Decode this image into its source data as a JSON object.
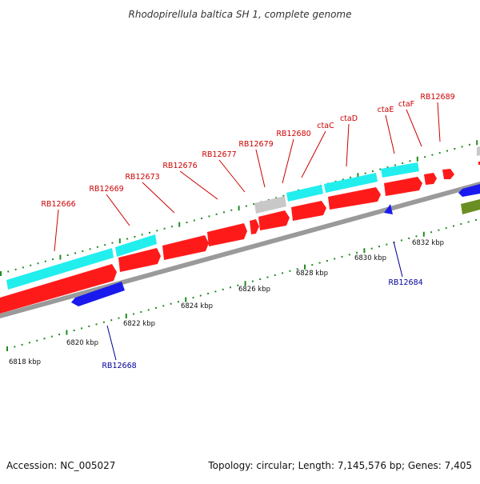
{
  "title": "Rhodopirellula baltica SH 1, complete genome",
  "footer": {
    "accession": "Accession: NC_005027",
    "summary": "Topology: circular; Length: 7,145,576 bp; Genes: 7,405"
  },
  "colors": {
    "cds_forward": "#ff1a1a",
    "cds_reverse": "#1a1aee",
    "highlight": "#22eeee",
    "grey_feature": "#c8c8c8",
    "olive_feature": "#6b8e23",
    "backbone": "#9a9a9a",
    "tick": "#228b22",
    "label_red": "#cc0000",
    "label_blue": "#000099"
  },
  "labels_upper": [
    {
      "text": "RB12666",
      "name": "label-rb12666"
    },
    {
      "text": "RB12669",
      "name": "label-rb12669"
    },
    {
      "text": "RB12673",
      "name": "label-rb12673"
    },
    {
      "text": "RB12676",
      "name": "label-rb12676"
    },
    {
      "text": "RB12677",
      "name": "label-rb12677"
    },
    {
      "text": "RB12679",
      "name": "label-rb12679"
    },
    {
      "text": "RB12680",
      "name": "label-rb12680"
    },
    {
      "text": "ctaC",
      "name": "label-ctac"
    },
    {
      "text": "ctaD",
      "name": "label-ctad"
    },
    {
      "text": "ctaE",
      "name": "label-ctae"
    },
    {
      "text": "ctaF",
      "name": "label-ctaf"
    },
    {
      "text": "RB12689",
      "name": "label-rb12689"
    }
  ],
  "labels_lower": [
    {
      "text": "RB12668",
      "name": "label-rb12668"
    },
    {
      "text": "RB12684",
      "name": "label-rb12684"
    }
  ],
  "scale_ticks": [
    {
      "text": "6818 kbp"
    },
    {
      "text": "6820 kbp"
    },
    {
      "text": "6822 kbp"
    },
    {
      "text": "6824 kbp"
    },
    {
      "text": "6826 kbp"
    },
    {
      "text": "6828 kbp"
    },
    {
      "text": "6830 kbp"
    },
    {
      "text": "6832 kbp"
    }
  ]
}
